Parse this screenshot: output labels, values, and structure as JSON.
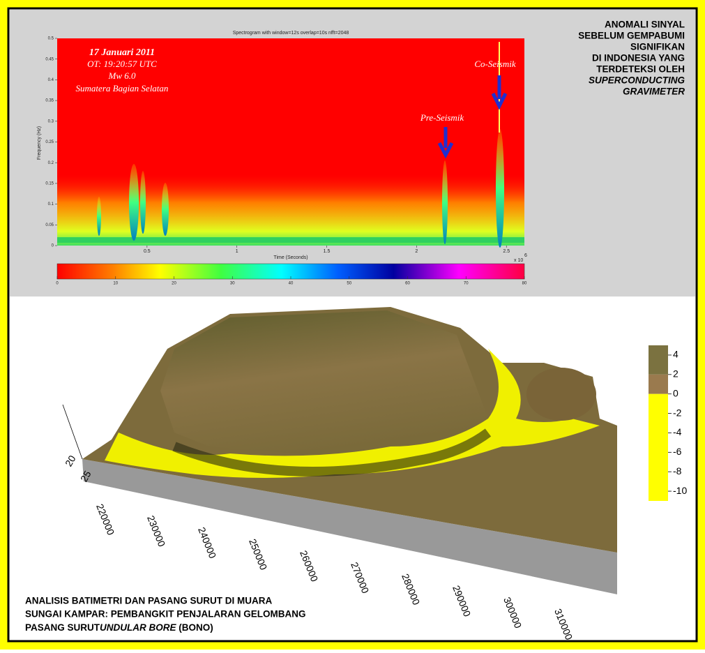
{
  "spectrogram": {
    "title": "Spectrogram with window=12s overlap=10s nfft=2048",
    "y_label": "Frequency (Hz)",
    "x_label": "Time (Seconds)",
    "x_exponent_base": "x 10",
    "x_exponent_power": "6",
    "ylim": [
      0,
      0.5
    ],
    "yticks": [
      0,
      0.05,
      0.1,
      0.15,
      0.2,
      0.25,
      0.3,
      0.35,
      0.4,
      0.45,
      0.5
    ],
    "xlim": [
      0,
      2.6
    ],
    "xticks": [
      0.5,
      1,
      1.5,
      2,
      2.5
    ],
    "event_info": [
      "17 Januari 2011",
      "OT: 19:20:57 UTC",
      "Mw 6.0",
      "Sumatera Bagian Selatan"
    ],
    "pre_seismic_label": "Pre-Seismik",
    "co_seismic_label": "Co-Seismik",
    "colorbar_lim": [
      0,
      80
    ],
    "colorbar_ticks": [
      0,
      10,
      20,
      30,
      40,
      50,
      60,
      70,
      80
    ]
  },
  "heading": [
    "ANOMALI SINYAL",
    "SEBELUM GEMPABUMI",
    "SIGNIFIKAN",
    "DI INDONESIA YANG",
    "TERDETEKSI OLEH",
    "SUPERCONDUCTING",
    "GRAVIMETER"
  ],
  "bathymetry": {
    "x_ticks": [
      220000,
      230000,
      240000,
      250000,
      260000,
      270000,
      280000,
      290000,
      300000,
      310000
    ],
    "side_ticks": [
      "20",
      "25"
    ],
    "colorbar_lim": [
      5,
      -11
    ],
    "colorbar_ticks": [
      4,
      2,
      0,
      -2,
      -4,
      -6,
      -8,
      -10
    ]
  },
  "caption": {
    "line1": "ANALISIS BATIMETRI DAN PASANG SURUT DI MUARA",
    "line2": "SUNGAI KAMPAR: PEMBANGKIT PENJALARAN GELOMBANG",
    "line3_start": "PASANG SURUT",
    "line3_italic": "UNDULAR BORE",
    "line3_end": " (BONO)"
  }
}
